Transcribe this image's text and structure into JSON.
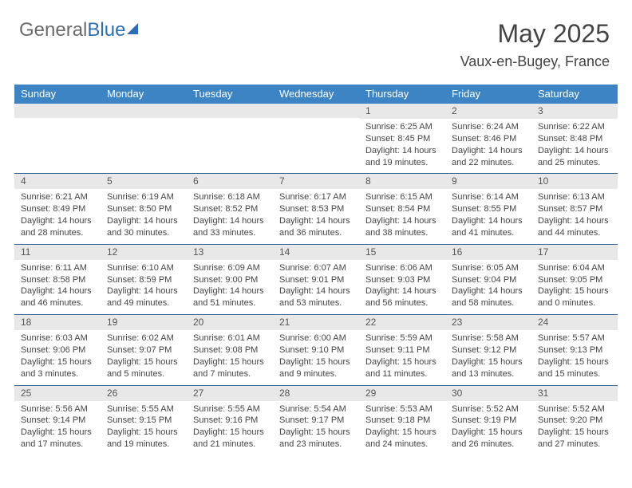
{
  "logo": {
    "part1": "General",
    "part2": "Blue"
  },
  "title": "May 2025",
  "location": "Vaux-en-Bugey, France",
  "colors": {
    "header_bar": "#3d84c5",
    "header_text": "#ffffff",
    "grey_band": "#e8e8e8",
    "rule": "#3d6a94",
    "text": "#444444",
    "logo_grey": "#6b6b6b",
    "logo_blue": "#2d6fb5"
  },
  "typography": {
    "title_fontsize": 32,
    "location_fontsize": 18,
    "dow_fontsize": 13,
    "daynum_fontsize": 12,
    "body_fontsize": 11
  },
  "dows": [
    "Sunday",
    "Monday",
    "Tuesday",
    "Wednesday",
    "Thursday",
    "Friday",
    "Saturday"
  ],
  "weeks": [
    [
      {
        "num": "",
        "sunrise": "",
        "sunset": "",
        "daylight": ""
      },
      {
        "num": "",
        "sunrise": "",
        "sunset": "",
        "daylight": ""
      },
      {
        "num": "",
        "sunrise": "",
        "sunset": "",
        "daylight": ""
      },
      {
        "num": "",
        "sunrise": "",
        "sunset": "",
        "daylight": ""
      },
      {
        "num": "1",
        "sunrise": "Sunrise: 6:25 AM",
        "sunset": "Sunset: 8:45 PM",
        "daylight": "Daylight: 14 hours and 19 minutes."
      },
      {
        "num": "2",
        "sunrise": "Sunrise: 6:24 AM",
        "sunset": "Sunset: 8:46 PM",
        "daylight": "Daylight: 14 hours and 22 minutes."
      },
      {
        "num": "3",
        "sunrise": "Sunrise: 6:22 AM",
        "sunset": "Sunset: 8:48 PM",
        "daylight": "Daylight: 14 hours and 25 minutes."
      }
    ],
    [
      {
        "num": "4",
        "sunrise": "Sunrise: 6:21 AM",
        "sunset": "Sunset: 8:49 PM",
        "daylight": "Daylight: 14 hours and 28 minutes."
      },
      {
        "num": "5",
        "sunrise": "Sunrise: 6:19 AM",
        "sunset": "Sunset: 8:50 PM",
        "daylight": "Daylight: 14 hours and 30 minutes."
      },
      {
        "num": "6",
        "sunrise": "Sunrise: 6:18 AM",
        "sunset": "Sunset: 8:52 PM",
        "daylight": "Daylight: 14 hours and 33 minutes."
      },
      {
        "num": "7",
        "sunrise": "Sunrise: 6:17 AM",
        "sunset": "Sunset: 8:53 PM",
        "daylight": "Daylight: 14 hours and 36 minutes."
      },
      {
        "num": "8",
        "sunrise": "Sunrise: 6:15 AM",
        "sunset": "Sunset: 8:54 PM",
        "daylight": "Daylight: 14 hours and 38 minutes."
      },
      {
        "num": "9",
        "sunrise": "Sunrise: 6:14 AM",
        "sunset": "Sunset: 8:55 PM",
        "daylight": "Daylight: 14 hours and 41 minutes."
      },
      {
        "num": "10",
        "sunrise": "Sunrise: 6:13 AM",
        "sunset": "Sunset: 8:57 PM",
        "daylight": "Daylight: 14 hours and 44 minutes."
      }
    ],
    [
      {
        "num": "11",
        "sunrise": "Sunrise: 6:11 AM",
        "sunset": "Sunset: 8:58 PM",
        "daylight": "Daylight: 14 hours and 46 minutes."
      },
      {
        "num": "12",
        "sunrise": "Sunrise: 6:10 AM",
        "sunset": "Sunset: 8:59 PM",
        "daylight": "Daylight: 14 hours and 49 minutes."
      },
      {
        "num": "13",
        "sunrise": "Sunrise: 6:09 AM",
        "sunset": "Sunset: 9:00 PM",
        "daylight": "Daylight: 14 hours and 51 minutes."
      },
      {
        "num": "14",
        "sunrise": "Sunrise: 6:07 AM",
        "sunset": "Sunset: 9:01 PM",
        "daylight": "Daylight: 14 hours and 53 minutes."
      },
      {
        "num": "15",
        "sunrise": "Sunrise: 6:06 AM",
        "sunset": "Sunset: 9:03 PM",
        "daylight": "Daylight: 14 hours and 56 minutes."
      },
      {
        "num": "16",
        "sunrise": "Sunrise: 6:05 AM",
        "sunset": "Sunset: 9:04 PM",
        "daylight": "Daylight: 14 hours and 58 minutes."
      },
      {
        "num": "17",
        "sunrise": "Sunrise: 6:04 AM",
        "sunset": "Sunset: 9:05 PM",
        "daylight": "Daylight: 15 hours and 0 minutes."
      }
    ],
    [
      {
        "num": "18",
        "sunrise": "Sunrise: 6:03 AM",
        "sunset": "Sunset: 9:06 PM",
        "daylight": "Daylight: 15 hours and 3 minutes."
      },
      {
        "num": "19",
        "sunrise": "Sunrise: 6:02 AM",
        "sunset": "Sunset: 9:07 PM",
        "daylight": "Daylight: 15 hours and 5 minutes."
      },
      {
        "num": "20",
        "sunrise": "Sunrise: 6:01 AM",
        "sunset": "Sunset: 9:08 PM",
        "daylight": "Daylight: 15 hours and 7 minutes."
      },
      {
        "num": "21",
        "sunrise": "Sunrise: 6:00 AM",
        "sunset": "Sunset: 9:10 PM",
        "daylight": "Daylight: 15 hours and 9 minutes."
      },
      {
        "num": "22",
        "sunrise": "Sunrise: 5:59 AM",
        "sunset": "Sunset: 9:11 PM",
        "daylight": "Daylight: 15 hours and 11 minutes."
      },
      {
        "num": "23",
        "sunrise": "Sunrise: 5:58 AM",
        "sunset": "Sunset: 9:12 PM",
        "daylight": "Daylight: 15 hours and 13 minutes."
      },
      {
        "num": "24",
        "sunrise": "Sunrise: 5:57 AM",
        "sunset": "Sunset: 9:13 PM",
        "daylight": "Daylight: 15 hours and 15 minutes."
      }
    ],
    [
      {
        "num": "25",
        "sunrise": "Sunrise: 5:56 AM",
        "sunset": "Sunset: 9:14 PM",
        "daylight": "Daylight: 15 hours and 17 minutes."
      },
      {
        "num": "26",
        "sunrise": "Sunrise: 5:55 AM",
        "sunset": "Sunset: 9:15 PM",
        "daylight": "Daylight: 15 hours and 19 minutes."
      },
      {
        "num": "27",
        "sunrise": "Sunrise: 5:55 AM",
        "sunset": "Sunset: 9:16 PM",
        "daylight": "Daylight: 15 hours and 21 minutes."
      },
      {
        "num": "28",
        "sunrise": "Sunrise: 5:54 AM",
        "sunset": "Sunset: 9:17 PM",
        "daylight": "Daylight: 15 hours and 23 minutes."
      },
      {
        "num": "29",
        "sunrise": "Sunrise: 5:53 AM",
        "sunset": "Sunset: 9:18 PM",
        "daylight": "Daylight: 15 hours and 24 minutes."
      },
      {
        "num": "30",
        "sunrise": "Sunrise: 5:52 AM",
        "sunset": "Sunset: 9:19 PM",
        "daylight": "Daylight: 15 hours and 26 minutes."
      },
      {
        "num": "31",
        "sunrise": "Sunrise: 5:52 AM",
        "sunset": "Sunset: 9:20 PM",
        "daylight": "Daylight: 15 hours and 27 minutes."
      }
    ]
  ]
}
